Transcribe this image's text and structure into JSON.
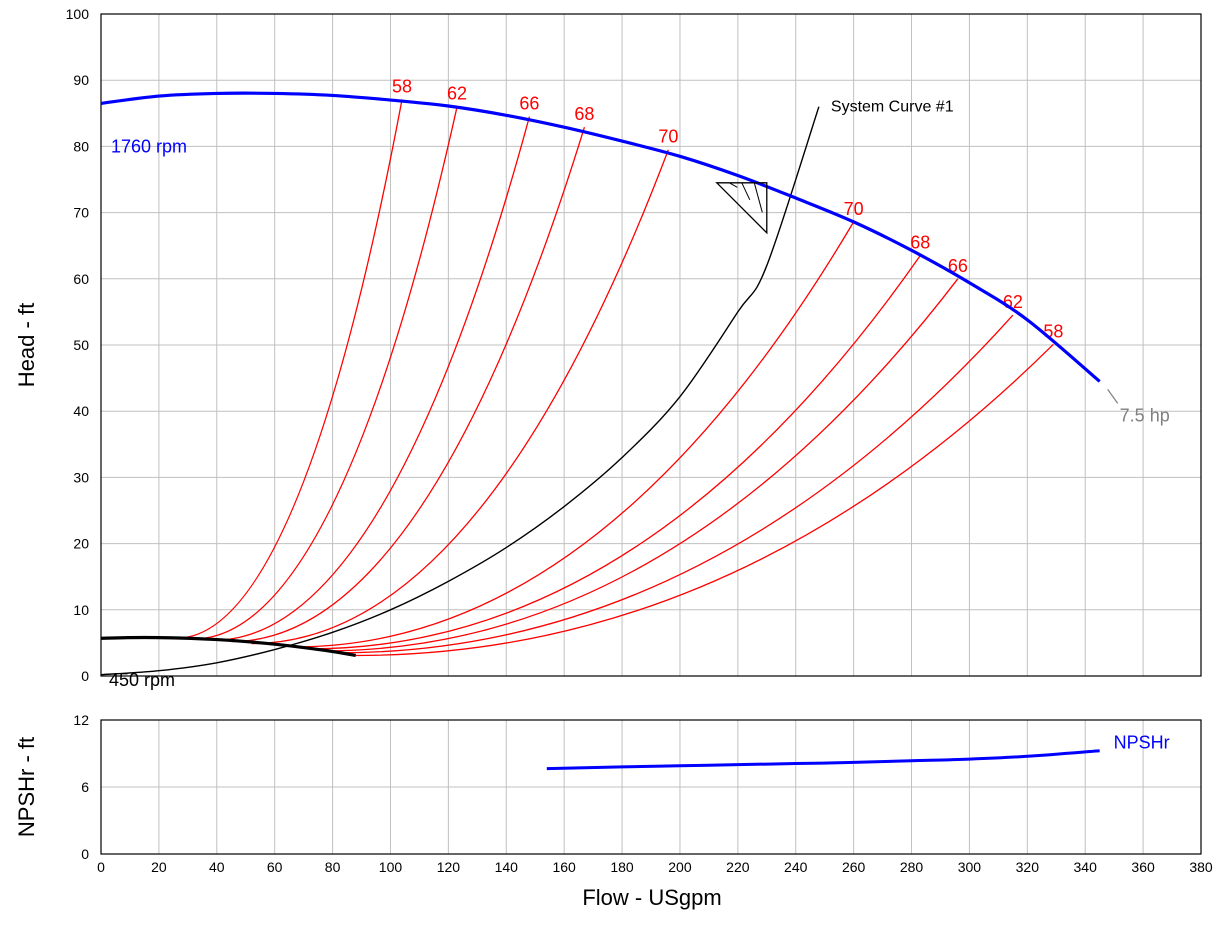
{
  "chart_data": [
    {
      "type": "line",
      "title": "",
      "xlabel": "Flow - USgpm",
      "ylabel": "Head - ft",
      "xlim": [
        0,
        380
      ],
      "ylim": [
        0,
        100
      ],
      "x_ticks": [
        0,
        20,
        40,
        60,
        80,
        100,
        120,
        140,
        160,
        180,
        200,
        220,
        240,
        260,
        280,
        300,
        320,
        340,
        360,
        380
      ],
      "y_ticks": [
        0,
        10,
        20,
        30,
        40,
        50,
        60,
        70,
        80,
        90,
        100
      ],
      "grid": true,
      "colors": {
        "pump": "#0000ff",
        "efficiency": "#ff0000",
        "system": "#000000",
        "power": "#808080",
        "min_speed": "#000000"
      },
      "pump_curve": {
        "name": "1760 rpm",
        "x": [
          0,
          20,
          40,
          60,
          80,
          100,
          120,
          140,
          160,
          180,
          200,
          220,
          240,
          260,
          280,
          300,
          320,
          345
        ],
        "y": [
          86.5,
          87.6,
          88.0,
          88.0,
          87.7,
          87.0,
          86.1,
          84.7,
          82.9,
          80.8,
          78.5,
          75.6,
          72.2,
          68.6,
          64.3,
          59.4,
          53.8,
          44.5
        ]
      },
      "min_speed_curve": {
        "name": "450 rpm",
        "x": [
          0,
          10,
          20,
          30,
          40,
          50,
          60,
          70,
          80,
          88
        ],
        "y": [
          5.7,
          5.8,
          5.8,
          5.7,
          5.5,
          5.2,
          4.8,
          4.3,
          3.7,
          3.1
        ]
      },
      "system_curve": {
        "name": "System Curve #1",
        "x": [
          0,
          20,
          40,
          60,
          80,
          100,
          120,
          140,
          160,
          180,
          200,
          220,
          230,
          248
        ],
        "y": [
          0.2,
          0.8,
          2.0,
          4.0,
          6.6,
          10.0,
          14.3,
          19.4,
          25.6,
          33.0,
          42.2,
          55.0,
          62.0,
          86.0
        ]
      },
      "operating_point": {
        "x": 230,
        "y": 74.5
      },
      "efficiency_curves": [
        {
          "name": "58",
          "x1": 26,
          "y1": 5.7,
          "x2": 104,
          "y2": 87.1
        },
        {
          "name": "62",
          "x1": 32,
          "y1": 5.6,
          "x2": 123,
          "y2": 86.0
        },
        {
          "name": "66",
          "x1": 39,
          "y1": 5.4,
          "x2": 148,
          "y2": 84.5
        },
        {
          "name": "68",
          "x1": 45,
          "y1": 5.2,
          "x2": 167,
          "y2": 82.9
        },
        {
          "name": "70",
          "x1": 52,
          "y1": 4.9,
          "x2": 196,
          "y2": 79.5
        },
        {
          "name": "70",
          "x1": 67,
          "y1": 4.4,
          "x2": 260,
          "y2": 68.6
        },
        {
          "name": "68",
          "x1": 72,
          "y1": 4.1,
          "x2": 283,
          "y2": 63.5
        },
        {
          "name": "66",
          "x1": 77,
          "y1": 3.8,
          "x2": 296,
          "y2": 60.0
        },
        {
          "name": "62",
          "x1": 82,
          "y1": 3.5,
          "x2": 315,
          "y2": 54.5
        },
        {
          "name": "58",
          "x1": 88,
          "y1": 3.1,
          "x2": 329,
          "y2": 50.1
        }
      ],
      "annotations": {
        "power": "7.5 hp"
      }
    },
    {
      "type": "line",
      "title": "",
      "xlabel": "Flow - USgpm",
      "ylabel": "NPSHr - ft",
      "xlim": [
        0,
        380
      ],
      "ylim": [
        0,
        12
      ],
      "x_ticks": [
        0,
        20,
        40,
        60,
        80,
        100,
        120,
        140,
        160,
        180,
        200,
        220,
        240,
        260,
        280,
        300,
        320,
        340,
        360,
        380
      ],
      "y_ticks": [
        0,
        6,
        12
      ],
      "grid": true,
      "series": [
        {
          "name": "NPSHr",
          "color": "#0000ff",
          "x": [
            154,
            180,
            200,
            220,
            240,
            260,
            280,
            300,
            320,
            345
          ],
          "y": [
            7.65,
            7.8,
            7.9,
            8.0,
            8.1,
            8.2,
            8.35,
            8.5,
            8.75,
            9.25
          ]
        }
      ]
    }
  ]
}
